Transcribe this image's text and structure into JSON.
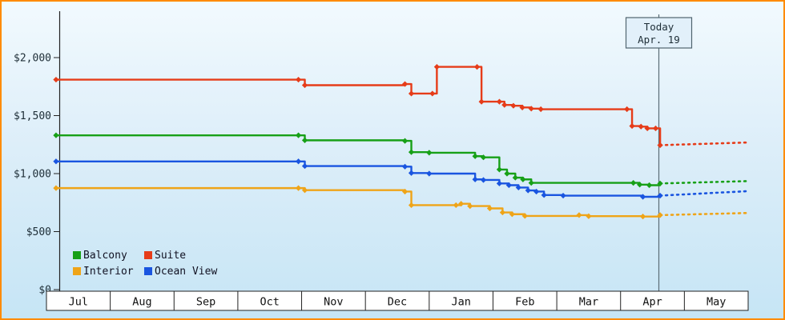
{
  "chart": {
    "frame_color": "#ff8b00",
    "bg_top": "#f2fafe",
    "bg_bottom": "#c6e5f5",
    "axis_color": "#222222",
    "text_color": "#1d2d36",
    "today_line_color": "#5b6d77",
    "today_box_fill": "#e2f0fa",
    "today_box_stroke": "#51656f"
  },
  "chart_data": {
    "type": "line",
    "title": "",
    "subtitle": "",
    "xlabel": "",
    "ylabel": "",
    "grid": false,
    "legend_position": "bottom-left",
    "x_categories": [
      "Jul",
      "Aug",
      "Sep",
      "Oct",
      "Nov",
      "Dec",
      "Jan",
      "Feb",
      "Mar",
      "Apr",
      "May"
    ],
    "y_ticks": [
      0,
      500,
      1000,
      1500,
      2000
    ],
    "y_tick_labels": [
      "$0",
      "$500",
      "$1,000",
      "$1,500",
      "$2,000"
    ],
    "ylim": [
      0,
      2000
    ],
    "today": {
      "month_index": 9.6,
      "label": [
        "Today",
        "Apr. 19"
      ]
    },
    "series": [
      {
        "name": "Balcony",
        "color": "#17a017",
        "points": [
          [
            0.15,
            1330
          ],
          [
            3.95,
            1330
          ],
          [
            4.05,
            1287
          ],
          [
            5.62,
            1282
          ],
          [
            5.72,
            1185
          ],
          [
            6.0,
            1180
          ],
          [
            6.72,
            1150
          ],
          [
            6.85,
            1140
          ],
          [
            7.1,
            1035
          ],
          [
            7.22,
            1000
          ],
          [
            7.35,
            965
          ],
          [
            7.47,
            950
          ],
          [
            7.6,
            920
          ],
          [
            9.2,
            920
          ],
          [
            9.3,
            905
          ],
          [
            9.45,
            900
          ],
          [
            9.62,
            915
          ]
        ],
        "forecast": [
          [
            9.62,
            915
          ],
          [
            10.97,
            935
          ]
        ]
      },
      {
        "name": "Suite",
        "color": "#e63c19",
        "points": [
          [
            0.15,
            1810
          ],
          [
            3.95,
            1810
          ],
          [
            4.05,
            1762
          ],
          [
            5.62,
            1772
          ],
          [
            5.72,
            1690
          ],
          [
            6.05,
            1690
          ],
          [
            6.12,
            1920
          ],
          [
            6.75,
            1920
          ],
          [
            6.82,
            1620
          ],
          [
            7.1,
            1620
          ],
          [
            7.18,
            1592
          ],
          [
            7.32,
            1585
          ],
          [
            7.46,
            1570
          ],
          [
            7.6,
            1560
          ],
          [
            7.75,
            1555
          ],
          [
            9.1,
            1555
          ],
          [
            9.18,
            1410
          ],
          [
            9.32,
            1405
          ],
          [
            9.42,
            1390
          ],
          [
            9.55,
            1390
          ],
          [
            9.62,
            1245
          ]
        ],
        "forecast": [
          [
            9.62,
            1245
          ],
          [
            10.97,
            1268
          ]
        ]
      },
      {
        "name": "Interior",
        "color": "#efa418",
        "points": [
          [
            0.15,
            875
          ],
          [
            3.95,
            875
          ],
          [
            4.05,
            857
          ],
          [
            5.62,
            845
          ],
          [
            5.72,
            728
          ],
          [
            6.42,
            728
          ],
          [
            6.5,
            740
          ],
          [
            6.64,
            720
          ],
          [
            6.95,
            700
          ],
          [
            7.15,
            665
          ],
          [
            7.3,
            650
          ],
          [
            7.5,
            635
          ],
          [
            8.35,
            642
          ],
          [
            8.5,
            633
          ],
          [
            9.35,
            630
          ],
          [
            9.62,
            642
          ]
        ],
        "forecast": [
          [
            9.62,
            642
          ],
          [
            10.97,
            660
          ]
        ]
      },
      {
        "name": "Ocean View",
        "color": "#1a55e0",
        "points": [
          [
            0.15,
            1105
          ],
          [
            3.95,
            1105
          ],
          [
            4.05,
            1065
          ],
          [
            5.62,
            1060
          ],
          [
            5.72,
            1005
          ],
          [
            6.0,
            1000
          ],
          [
            6.72,
            950
          ],
          [
            6.85,
            945
          ],
          [
            7.1,
            915
          ],
          [
            7.25,
            900
          ],
          [
            7.4,
            880
          ],
          [
            7.55,
            855
          ],
          [
            7.68,
            845
          ],
          [
            7.8,
            815
          ],
          [
            8.1,
            810
          ],
          [
            9.35,
            800
          ],
          [
            9.62,
            810
          ]
        ],
        "forecast": [
          [
            9.62,
            810
          ],
          [
            10.97,
            848
          ]
        ]
      }
    ]
  }
}
